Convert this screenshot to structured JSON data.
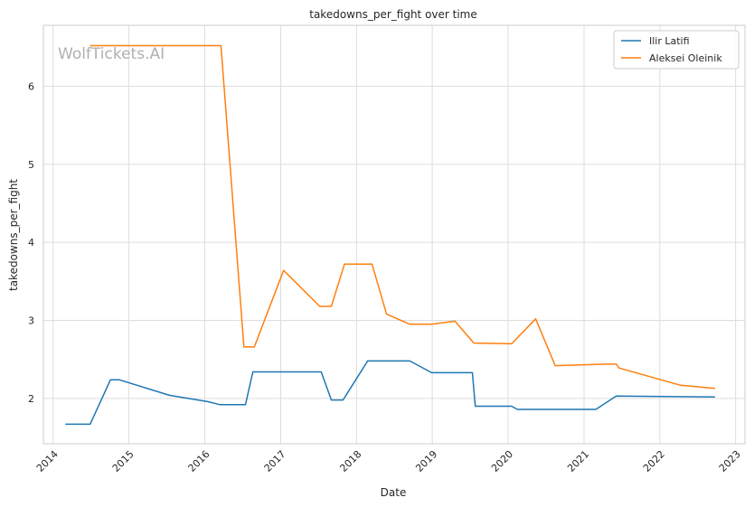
{
  "watermark": "WolfTickets.AI",
  "chart_data": {
    "type": "line",
    "title": "takedowns_per_fight over time",
    "xlabel": "Date",
    "ylabel": "takedowns_per_fight",
    "xlim": [
      "2013-11-15",
      "2023-02-15"
    ],
    "ylim": [
      1.42,
      6.78
    ],
    "x_ticks": [
      "2014",
      "2015",
      "2016",
      "2017",
      "2018",
      "2019",
      "2020",
      "2021",
      "2022",
      "2023"
    ],
    "y_ticks": [
      2,
      3,
      4,
      5,
      6
    ],
    "grid": true,
    "legend_position": "top-right",
    "colors": {
      "Ilir Latifi": "#1f77b4",
      "Aleksei Oleinik": "#ff7f0e"
    },
    "series": [
      {
        "name": "Ilir Latifi",
        "color": "#1f77b4",
        "points": [
          [
            "2014-03-01",
            1.67
          ],
          [
            "2014-06-28",
            1.67
          ],
          [
            "2014-10-04",
            2.24
          ],
          [
            "2014-11-15",
            2.24
          ],
          [
            "2015-07-15",
            2.04
          ],
          [
            "2016-01-15",
            1.96
          ],
          [
            "2016-03-15",
            1.92
          ],
          [
            "2016-07-15",
            1.92
          ],
          [
            "2016-08-20",
            2.34
          ],
          [
            "2017-07-15",
            2.34
          ],
          [
            "2017-09-02",
            1.98
          ],
          [
            "2017-10-28",
            1.98
          ],
          [
            "2018-02-24",
            2.48
          ],
          [
            "2018-09-15",
            2.48
          ],
          [
            "2018-12-29",
            2.33
          ],
          [
            "2019-07-13",
            2.33
          ],
          [
            "2019-07-27",
            1.9
          ],
          [
            "2020-01-18",
            1.9
          ],
          [
            "2020-02-15",
            1.86
          ],
          [
            "2021-02-27",
            1.86
          ],
          [
            "2021-06-05",
            2.03
          ],
          [
            "2022-09-24",
            2.02
          ]
        ]
      },
      {
        "name": "Aleksei Oleinik",
        "color": "#ff7f0e",
        "points": [
          [
            "2014-06-28",
            6.52
          ],
          [
            "2016-03-19",
            6.52
          ],
          [
            "2016-07-08",
            2.66
          ],
          [
            "2016-08-27",
            2.66
          ],
          [
            "2017-01-15",
            3.64
          ],
          [
            "2017-07-08",
            3.18
          ],
          [
            "2017-09-02",
            3.18
          ],
          [
            "2017-11-04",
            3.72
          ],
          [
            "2018-03-17",
            3.72
          ],
          [
            "2018-05-26",
            3.08
          ],
          [
            "2018-09-15",
            2.95
          ],
          [
            "2018-12-29",
            2.95
          ],
          [
            "2019-04-20",
            2.99
          ],
          [
            "2019-07-20",
            2.71
          ],
          [
            "2020-01-18",
            2.7
          ],
          [
            "2020-05-13",
            3.02
          ],
          [
            "2020-08-15",
            2.42
          ],
          [
            "2021-04-17",
            2.44
          ],
          [
            "2021-06-05",
            2.44
          ],
          [
            "2021-06-19",
            2.39
          ],
          [
            "2022-04-09",
            2.17
          ],
          [
            "2022-09-24",
            2.13
          ]
        ]
      }
    ]
  }
}
